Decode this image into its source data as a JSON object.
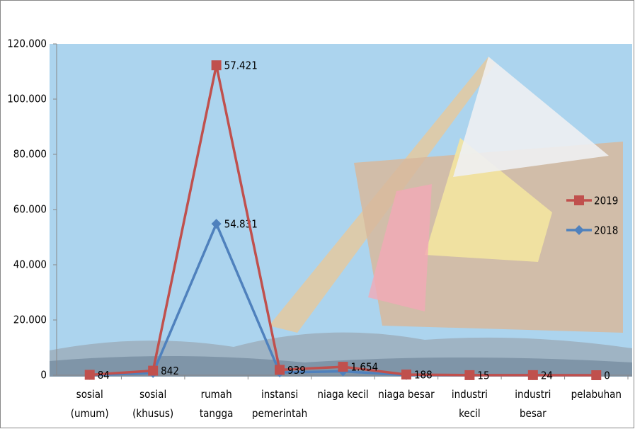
{
  "chart_data": {
    "type": "line",
    "stacked": true,
    "categories": [
      "sosial\n(umum)",
      "sosial\n(khusus)",
      "rumah\ntangga",
      "instansi\npemerintah",
      "niaga kecil",
      "niaga besar",
      "industri\nkecil",
      "industri\nbesar",
      "pelabuhan"
    ],
    "series": [
      {
        "name": "2019",
        "color": "#c0504d",
        "marker": "square",
        "values": [
          84,
          842,
          57421,
          939,
          1654,
          188,
          15,
          24,
          0
        ],
        "value_labels": [
          "84",
          "842",
          "57.421",
          "939",
          "1.654",
          "188",
          "15",
          "24",
          "0"
        ]
      },
      {
        "name": "2018",
        "color": "#4f81bd",
        "marker": "diamond",
        "values": [
          50,
          800,
          54831,
          1000,
          1400,
          50,
          10,
          10,
          0
        ],
        "value_labels": [
          null,
          null,
          "54.831",
          null,
          null,
          null,
          null,
          null,
          null
        ]
      }
    ],
    "ylim": [
      0,
      120000
    ],
    "yticks": [
      0,
      {
        "value": 20000,
        "label": "20.000"
      },
      {
        "value": 40000,
        "label": "40.000"
      },
      {
        "value": 60000,
        "label": "60.000"
      },
      {
        "value": 80000,
        "label": "80.000"
      },
      {
        "value": 100000,
        "label": "100.000"
      },
      {
        "value": 120000,
        "label": "120.000"
      }
    ],
    "legend": "right"
  }
}
